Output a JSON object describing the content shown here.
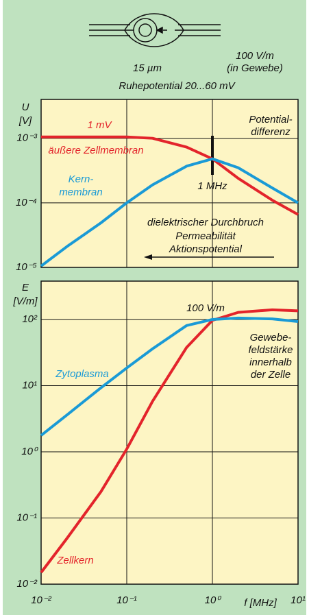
{
  "diagram": {
    "size_label": "15 µm",
    "field_label": [
      "100 V/m",
      "(in Gewebe)"
    ],
    "rest_potential": "Ruhepotential 20...60 mV"
  },
  "chart_data": [
    {
      "type": "line",
      "ylabel": [
        "U",
        "[V]"
      ],
      "xlim": [
        0.01,
        10
      ],
      "ylim": [
        1e-05,
        0.004
      ],
      "log_x": true,
      "log_y": true,
      "grid": true,
      "yticks": [
        {
          "value": 1e-05,
          "label": "10⁻⁵"
        },
        {
          "value": 0.0001,
          "label": "10⁻⁴"
        },
        {
          "value": 0.001,
          "label": "10⁻³"
        }
      ],
      "x": [
        0.01,
        0.02,
        0.05,
        0.1,
        0.2,
        0.5,
        1,
        2,
        5,
        10
      ],
      "series": [
        {
          "name": "äußere Zellmembran",
          "color": "#e3242b",
          "values": [
            0.00105,
            0.00105,
            0.00105,
            0.00105,
            0.001,
            0.00073,
            0.00048,
            0.00024,
            0.00011,
            6.6e-05
          ]
        },
        {
          "name": [
            "Kern-",
            "membran"
          ],
          "color": "#1a9ad6",
          "values": [
            1.05e-05,
            2.1e-05,
            4.9e-05,
            0.0001,
            0.00019,
            0.00037,
            0.00048,
            0.00035,
            0.00017,
            0.0001
          ]
        }
      ],
      "annotations": [
        "1 mV",
        "Potential-",
        "differenz",
        "1 MHz",
        "dielektrischer Durchbruch",
        "Permeabilität",
        "Aktionspotential"
      ]
    },
    {
      "type": "line",
      "ylabel": [
        "E",
        "[V/m]"
      ],
      "xlabel": "f [MHz]",
      "xlim": [
        0.01,
        10
      ],
      "ylim": [
        0.01,
        380
      ],
      "log_x": true,
      "log_y": true,
      "grid": true,
      "xticks": [
        {
          "value": 0.01,
          "label": "10⁻²"
        },
        {
          "value": 0.1,
          "label": "10⁻¹"
        },
        {
          "value": 1,
          "label": "10⁰"
        },
        {
          "value": 10,
          "label": "10¹"
        }
      ],
      "yticks": [
        {
          "value": 0.01,
          "label": "10⁻²"
        },
        {
          "value": 0.1,
          "label": "10⁻¹"
        },
        {
          "value": 1,
          "label": "10⁰"
        },
        {
          "value": 10,
          "label": "10¹"
        },
        {
          "value": 100,
          "label": "10²"
        }
      ],
      "x": [
        0.01,
        0.02,
        0.05,
        0.1,
        0.2,
        0.5,
        1,
        2,
        5,
        10
      ],
      "series": [
        {
          "name": "Zellkern",
          "color": "#e3242b",
          "values": [
            0.015,
            0.049,
            0.25,
            1.1,
            5.8,
            37.8,
            97,
            128,
            140,
            135
          ]
        },
        {
          "name": "Zytoplasma",
          "color": "#1a9ad6",
          "values": [
            1.77,
            3.6,
            9.3,
            18.5,
            36,
            81,
            100,
            105,
            102,
            93
          ]
        }
      ],
      "annotations": [
        "100 V/m",
        "Gewebe-",
        "feldstärke",
        "innerhalb",
        "der Zelle"
      ]
    }
  ]
}
